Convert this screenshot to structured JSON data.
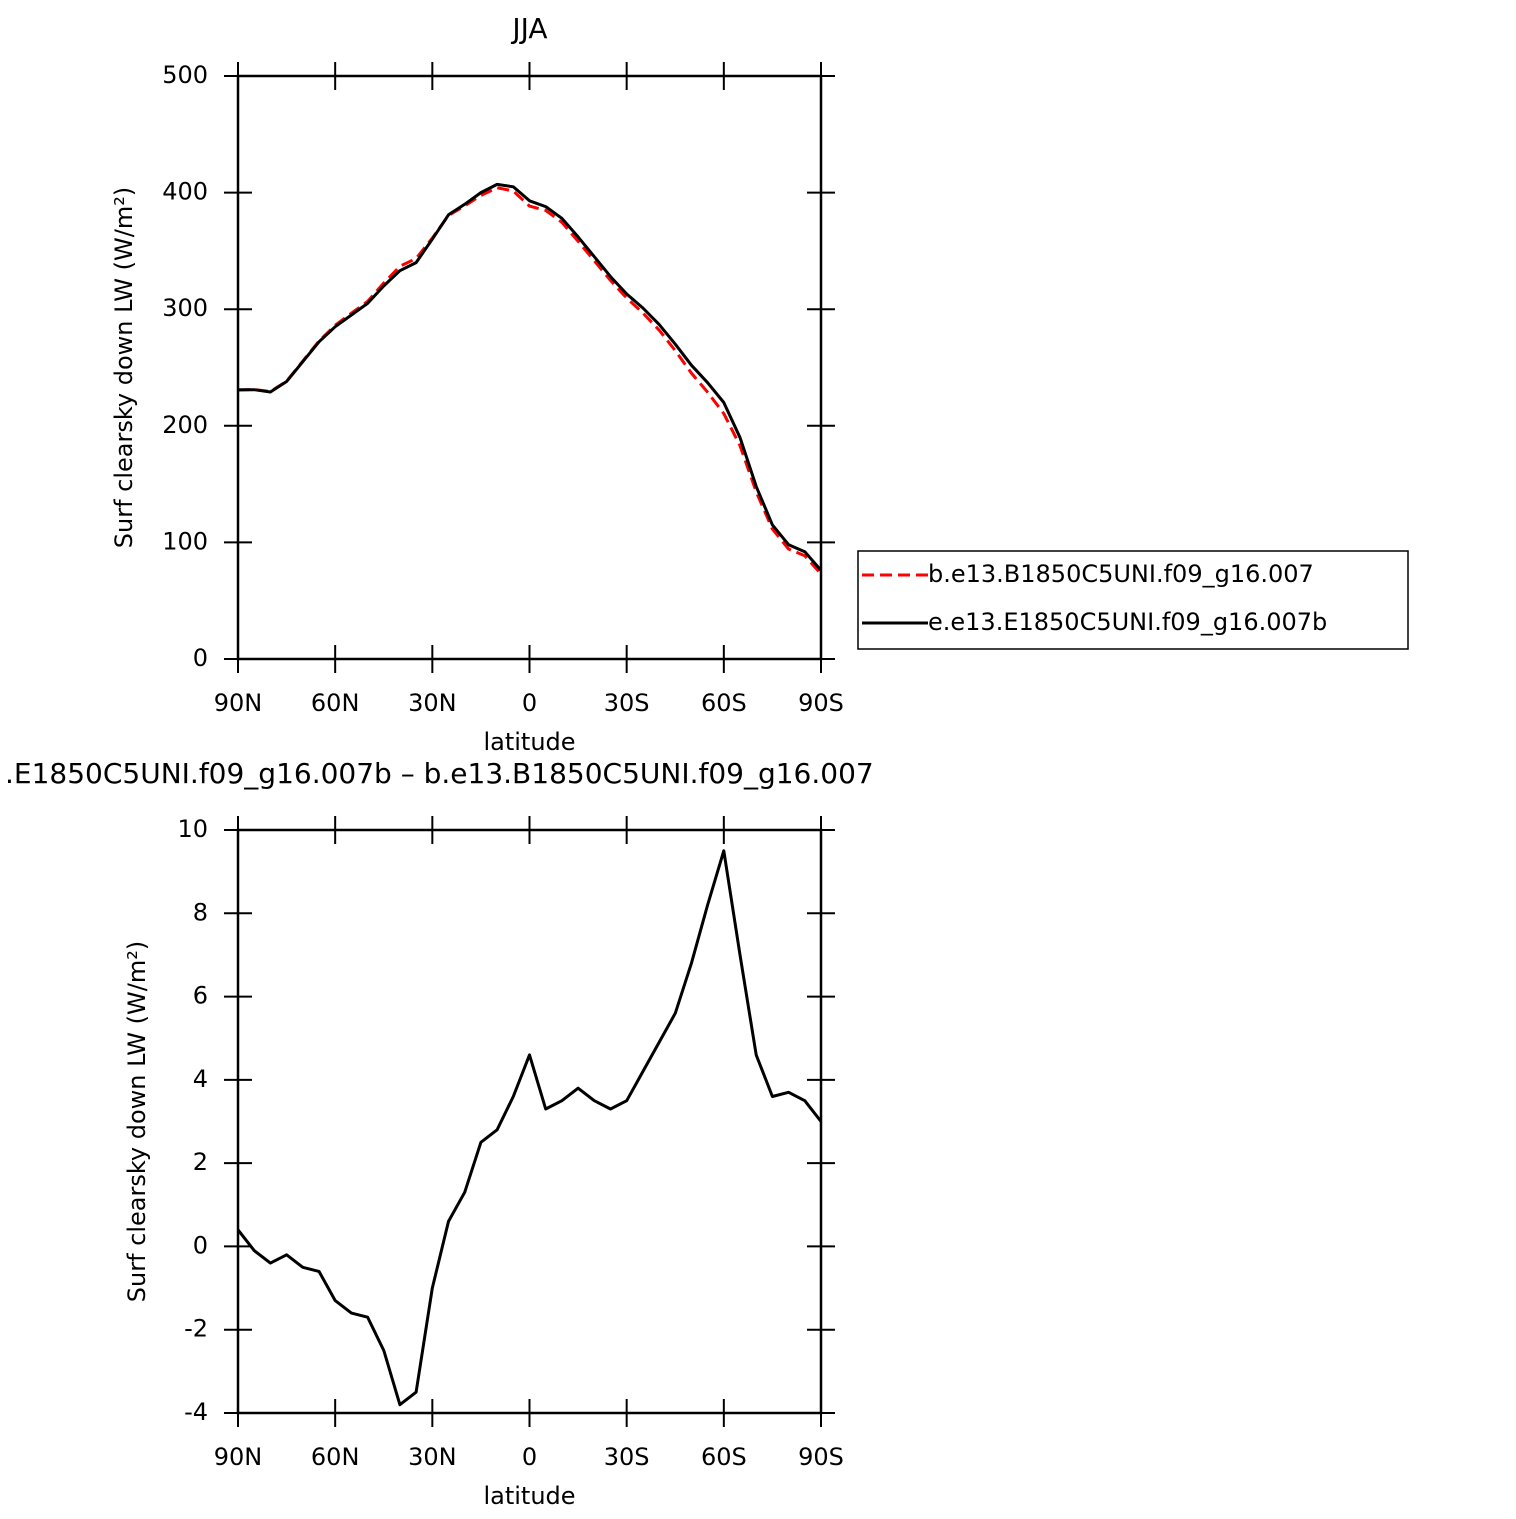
{
  "chart_data": [
    {
      "type": "line",
      "title": "JJA",
      "xlabel": "latitude",
      "ylabel": "Surf clearsky down LW (W/m²)",
      "x": [
        90,
        85,
        80,
        75,
        70,
        65,
        60,
        55,
        50,
        45,
        40,
        35,
        30,
        25,
        20,
        15,
        10,
        5,
        0,
        -5,
        -10,
        -15,
        -20,
        -25,
        -30,
        -35,
        -40,
        -45,
        -50,
        -55,
        -60,
        -65,
        -70,
        -75,
        -80,
        -85,
        -90
      ],
      "xlim": [
        90,
        -90
      ],
      "xticks": [
        {
          "value": 90,
          "label": "90N"
        },
        {
          "value": 60,
          "label": "60N"
        },
        {
          "value": 30,
          "label": "30N"
        },
        0,
        {
          "value": -30,
          "label": "30S"
        },
        {
          "value": -60,
          "label": "60S"
        },
        {
          "value": -90,
          "label": "90S"
        }
      ],
      "ylim": [
        0,
        500
      ],
      "yticks": [
        0,
        100,
        200,
        300,
        400,
        500
      ],
      "legend": "right",
      "series": [
        {
          "name": "b.e13.B1850C5UNI.f09_g16.007",
          "color": "#ff0000",
          "dashed": true,
          "values": [
            230.6,
            231.1,
            229.4,
            238.2,
            255.5,
            272.6,
            286.3,
            296.6,
            306.7,
            322.5,
            336.8,
            343.5,
            361,
            380.4,
            388.7,
            397.5,
            404.2,
            401.4,
            388.4,
            384.7,
            374.5,
            358.2,
            341.5,
            324.7,
            309.5,
            296.8,
            282.1,
            264.4,
            245.2,
            228.8,
            210.5,
            183,
            143.4,
            111.4,
            94.3,
            88.5,
            73
          ]
        },
        {
          "name": "e.e13.E1850C5UNI.f09_g16.007b",
          "color": "#000000",
          "dashed": false,
          "values": [
            231,
            231,
            229,
            238,
            255,
            272,
            285,
            295,
            305,
            320,
            333,
            340,
            360,
            381,
            390,
            400,
            407,
            405,
            393,
            388,
            378,
            362,
            345,
            328,
            313,
            301,
            287,
            270,
            252,
            237,
            220,
            190,
            148,
            115,
            98,
            92,
            76
          ]
        }
      ]
    },
    {
      "type": "line",
      "title": ".E1850C5UNI.f09_g16.007b – b.e13.B1850C5UNI.f09_g16.007",
      "xlabel": "latitude",
      "ylabel": "Surf clearsky down LW (W/m²)",
      "x": [
        90,
        85,
        80,
        75,
        70,
        65,
        60,
        55,
        50,
        45,
        40,
        35,
        30,
        25,
        20,
        15,
        10,
        5,
        0,
        -5,
        -10,
        -15,
        -20,
        -25,
        -30,
        -35,
        -40,
        -45,
        -50,
        -55,
        -60,
        -65,
        -70,
        -75,
        -80,
        -85,
        -90
      ],
      "xlim": [
        90,
        -90
      ],
      "xticks": [
        {
          "value": 90,
          "label": "90N"
        },
        {
          "value": 60,
          "label": "60N"
        },
        {
          "value": 30,
          "label": "30N"
        },
        0,
        {
          "value": -30,
          "label": "30S"
        },
        {
          "value": -60,
          "label": "60S"
        },
        {
          "value": -90,
          "label": "90S"
        }
      ],
      "ylim": [
        -4,
        10
      ],
      "yticks": [
        -4,
        -2,
        0,
        2,
        4,
        6,
        8,
        10
      ],
      "series": [
        {
          "color": "#000000",
          "dashed": false,
          "values": [
            0.4,
            -0.1,
            -0.4,
            -0.2,
            -0.5,
            -0.6,
            -1.3,
            -1.6,
            -1.7,
            -2.5,
            -3.8,
            -3.5,
            -1.0,
            0.6,
            1.3,
            2.5,
            2.8,
            3.6,
            4.6,
            3.3,
            3.5,
            3.8,
            3.5,
            3.3,
            3.5,
            4.2,
            4.9,
            5.6,
            6.8,
            8.2,
            9.5,
            7.0,
            4.6,
            3.6,
            3.7,
            3.5,
            3.0
          ]
        }
      ]
    }
  ]
}
